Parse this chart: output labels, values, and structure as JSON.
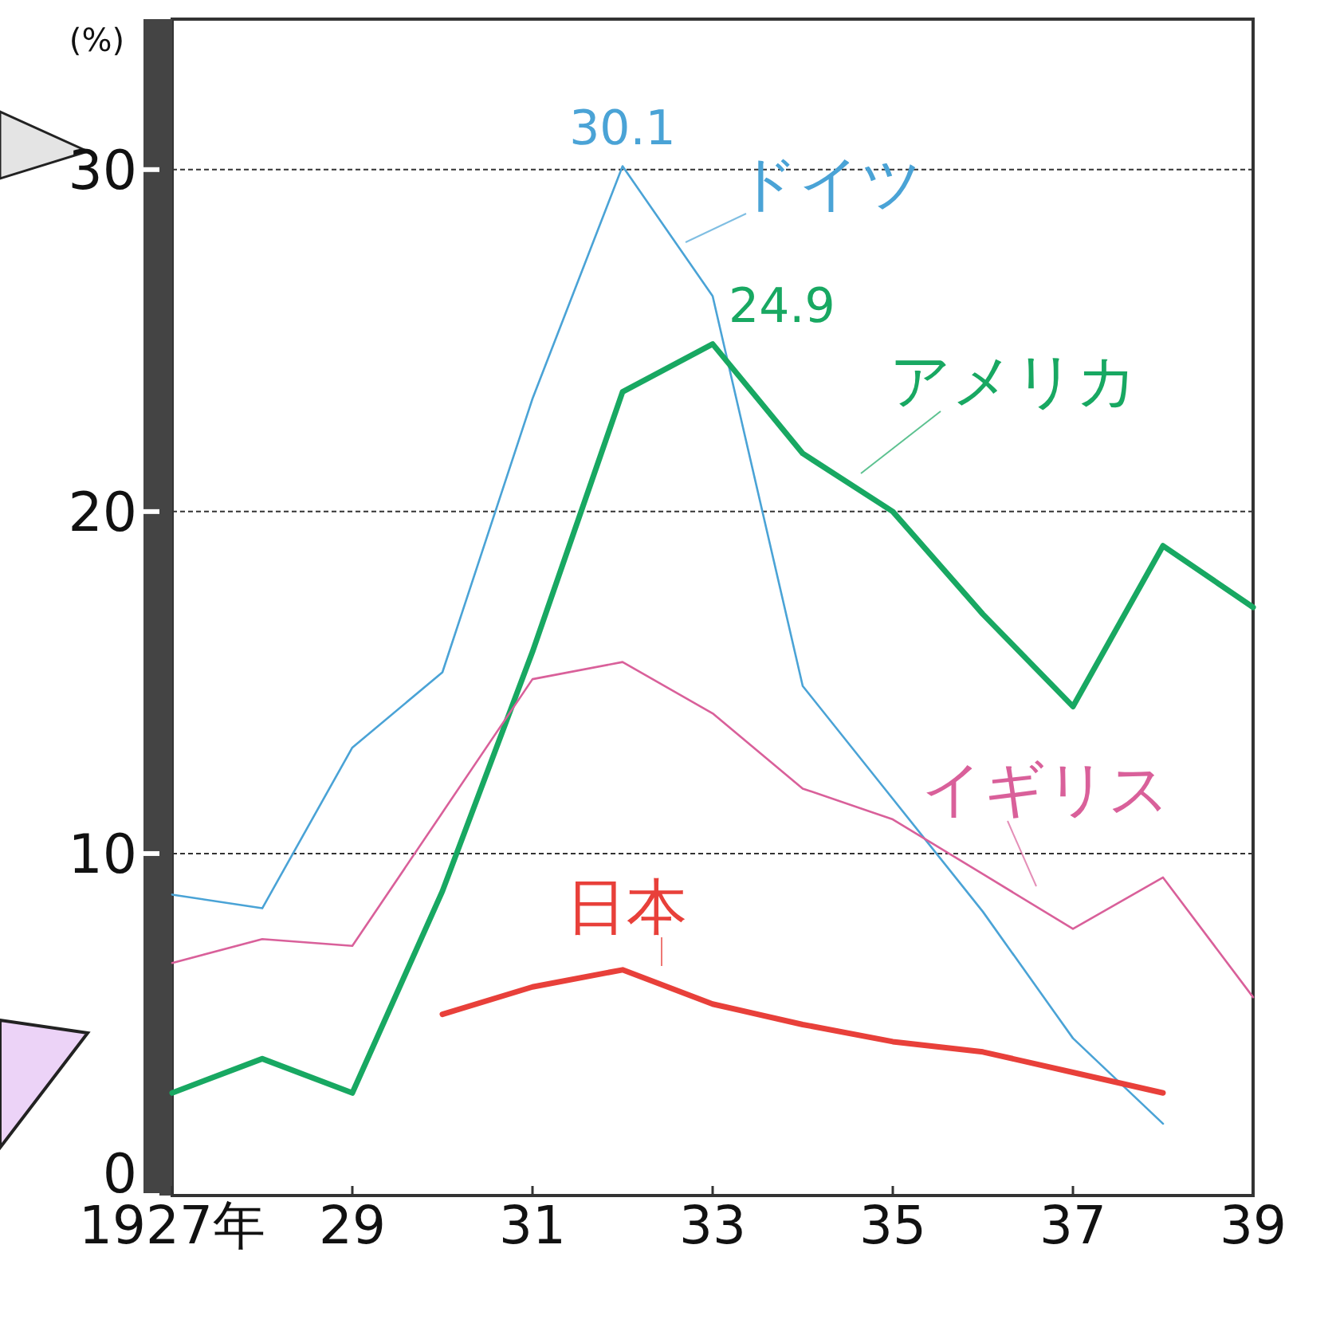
{
  "chart_data": {
    "type": "line",
    "ylabel": "(%)",
    "x": [
      1927,
      1928,
      1929,
      1930,
      1931,
      1932,
      1933,
      1934,
      1935,
      1936,
      1937,
      1938,
      1939
    ],
    "xlim": [
      1927,
      1939
    ],
    "xticks": [
      {
        "value": 1927,
        "label": "1927年"
      },
      {
        "value": 1929,
        "label": "29"
      },
      {
        "value": 1931,
        "label": "31"
      },
      {
        "value": 1933,
        "label": "33"
      },
      {
        "value": 1935,
        "label": "35"
      },
      {
        "value": 1937,
        "label": "37"
      },
      {
        "value": 1939,
        "label": "39"
      }
    ],
    "ylim": [
      0,
      34.4
    ],
    "yticks": [
      0,
      10,
      20,
      30
    ],
    "grid": "y",
    "marker": "none",
    "line_style": "solid",
    "series": [
      {
        "name": "ドイツ",
        "color": "#4aa3d6",
        "values": [
          8.8,
          8.4,
          13.1,
          15.3,
          23.3,
          30.1,
          26.3,
          14.9,
          11.6,
          8.3,
          4.6,
          2.1,
          null
        ]
      },
      {
        "name": "アメリカ",
        "color": "#18a862",
        "values": [
          3.0,
          4.0,
          3.0,
          8.9,
          15.9,
          23.5,
          24.9,
          21.7,
          20.0,
          17.0,
          14.3,
          19.0,
          17.2
        ]
      },
      {
        "name": "イギリス",
        "color": "#d9609a",
        "values": [
          6.8,
          7.5,
          7.3,
          11.2,
          15.1,
          15.6,
          14.1,
          11.9,
          11.0,
          9.4,
          7.8,
          9.3,
          5.8
        ]
      },
      {
        "name": "日本",
        "color": "#e8403a",
        "values": [
          null,
          null,
          null,
          5.3,
          6.1,
          6.6,
          5.6,
          5.0,
          4.5,
          4.2,
          3.6,
          3.0,
          null
        ]
      }
    ],
    "annotations": [
      {
        "text": "30.1",
        "x": 1932,
        "y": 30.1
      },
      {
        "text": "24.9",
        "x": 1933,
        "y": 24.9
      }
    ]
  }
}
